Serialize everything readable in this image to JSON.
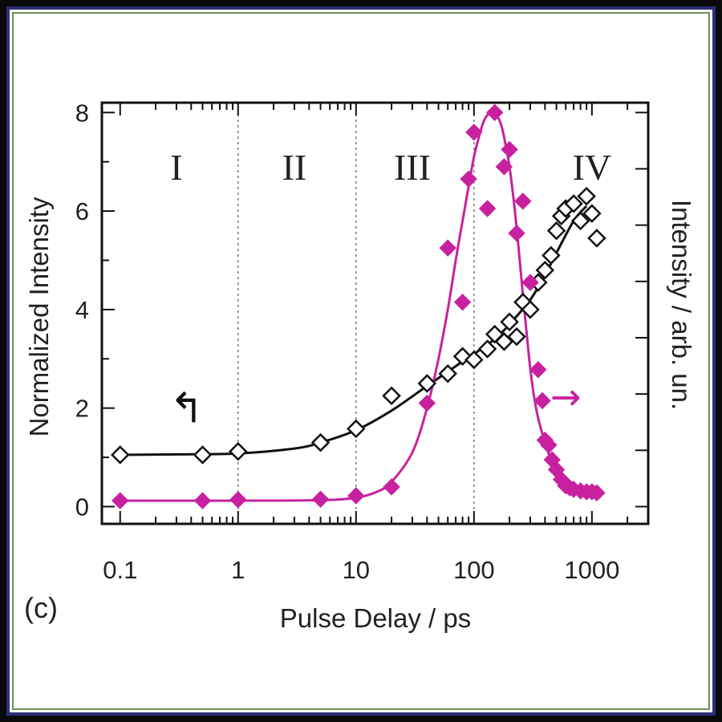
{
  "chart_data": {
    "type": "scatter",
    "panel_label": "(c)",
    "xlabel": "Pulse Delay / ps",
    "ylabel": "Normalized Intensity",
    "y2label": "Intensity / arb. un.",
    "xscale": "log",
    "xlim": [
      0.07,
      3000
    ],
    "ylim": [
      -0.35,
      8.2
    ],
    "x_ticks": [
      {
        "value": 0.1,
        "label": "0.1"
      },
      {
        "value": 1,
        "label": "1"
      },
      {
        "value": 10,
        "label": "10"
      },
      {
        "value": 100,
        "label": "100"
      },
      {
        "value": 1000,
        "label": "1000"
      }
    ],
    "y_ticks": [
      {
        "value": 0,
        "label": "0"
      },
      {
        "value": 2,
        "label": "2"
      },
      {
        "value": 4,
        "label": "4"
      },
      {
        "value": 6,
        "label": "6"
      },
      {
        "value": 8,
        "label": "8"
      }
    ],
    "region_boundaries": [
      1,
      10,
      100
    ],
    "regions": [
      {
        "label": "I",
        "x": 0.3
      },
      {
        "label": "II",
        "x": 3
      },
      {
        "label": "III",
        "x": 30
      },
      {
        "label": "IV",
        "x": 1000
      }
    ],
    "series": [
      {
        "axis": "left",
        "color": "#111111",
        "marker": "open-diamond",
        "x": [
          0.1,
          0.5,
          1,
          5,
          10,
          20,
          40,
          60,
          80,
          100,
          130,
          150,
          180,
          200,
          230,
          260,
          300,
          350,
          400,
          450,
          500,
          550,
          600,
          700,
          800,
          900,
          1000,
          1100
        ],
        "y": [
          1.05,
          1.05,
          1.12,
          1.3,
          1.58,
          2.25,
          2.5,
          2.7,
          3.05,
          2.98,
          3.2,
          3.5,
          3.35,
          3.75,
          3.45,
          4.15,
          4.0,
          4.55,
          4.8,
          5.1,
          5.6,
          5.9,
          6.05,
          6.15,
          5.8,
          6.3,
          5.95,
          5.45
        ],
        "fit_x": [
          0.1,
          0.3,
          1,
          3,
          5,
          10,
          20,
          40,
          70,
          100,
          150,
          200,
          300,
          400,
          500,
          700,
          900
        ],
        "fit_y": [
          1.05,
          1.06,
          1.08,
          1.18,
          1.3,
          1.55,
          1.95,
          2.45,
          2.85,
          3.1,
          3.4,
          3.7,
          4.2,
          4.7,
          5.15,
          5.8,
          6.1
        ]
      },
      {
        "axis": "right",
        "color": "#c8219f",
        "marker": "filled-diamond",
        "x": [
          0.1,
          0.5,
          1,
          5,
          10,
          20,
          40,
          60,
          80,
          90,
          100,
          130,
          150,
          180,
          200,
          230,
          260,
          300,
          350,
          380,
          400,
          430,
          460,
          500,
          550,
          600,
          650,
          700,
          800,
          900,
          1000,
          1100
        ],
        "y": [
          0.12,
          0.12,
          0.14,
          0.15,
          0.22,
          0.4,
          2.1,
          5.25,
          4.15,
          6.65,
          7.6,
          6.05,
          8.0,
          6.9,
          7.25,
          5.55,
          6.2,
          4.55,
          2.78,
          2.15,
          1.35,
          1.25,
          0.95,
          0.75,
          0.55,
          0.42,
          0.38,
          0.35,
          0.32,
          0.3,
          0.3,
          0.28
        ],
        "fit_x": [
          0.1,
          1,
          5,
          10,
          15,
          20,
          30,
          40,
          50,
          60,
          70,
          80,
          90,
          100,
          110,
          120,
          130,
          140,
          150,
          160,
          170,
          180,
          200,
          220,
          240,
          260,
          280,
          300,
          320,
          350,
          400,
          450,
          500,
          600,
          700,
          800,
          1000,
          1100
        ],
        "fit_y": [
          0.12,
          0.12,
          0.13,
          0.18,
          0.3,
          0.5,
          1.1,
          2.0,
          3.0,
          4.0,
          5.0,
          5.8,
          6.5,
          7.1,
          7.5,
          7.8,
          7.95,
          8.0,
          7.98,
          7.9,
          7.75,
          7.5,
          6.9,
          6.1,
          5.2,
          4.3,
          3.5,
          2.8,
          2.3,
          1.8,
          1.3,
          0.95,
          0.7,
          0.5,
          0.4,
          0.34,
          0.3,
          0.28
        ]
      }
    ],
    "left_arrow": {
      "symbol": "↰",
      "x": 0.5,
      "y": 2.0
    },
    "right_arrow": {
      "symbol": "→",
      "x": 600,
      "y": 2.2
    }
  }
}
